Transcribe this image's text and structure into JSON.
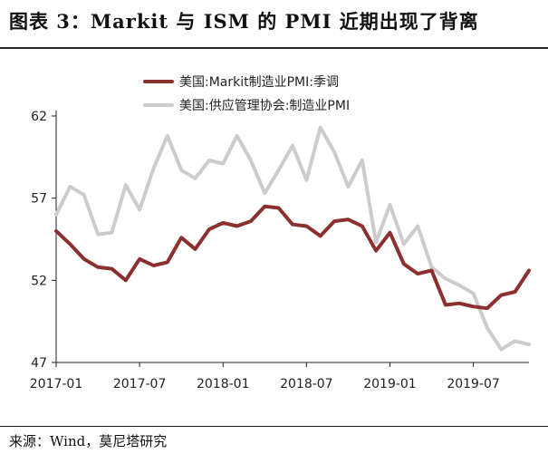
{
  "header": {
    "title": "图表 3：Markit 与 ISM 的 PMI 近期出现了背离"
  },
  "footer": {
    "source": "来源：Wind，莫尼塔研究"
  },
  "chart_data": {
    "type": "line",
    "title": "图表 3：Markit 与 ISM 的 PMI 近期出现了背离",
    "xlabel": "",
    "ylabel": "",
    "x_ticks": [
      "2017-01",
      "2017-07",
      "2018-01",
      "2018-07",
      "2019-01",
      "2019-07"
    ],
    "y_ticks": [
      47,
      52,
      57,
      62
    ],
    "ylim": [
      47,
      62
    ],
    "grid": false,
    "legend_position": "top",
    "x": [
      "2017-01",
      "2017-02",
      "2017-03",
      "2017-04",
      "2017-05",
      "2017-06",
      "2017-07",
      "2017-08",
      "2017-09",
      "2017-10",
      "2017-11",
      "2017-12",
      "2018-01",
      "2018-02",
      "2018-03",
      "2018-04",
      "2018-05",
      "2018-06",
      "2018-07",
      "2018-08",
      "2018-09",
      "2018-10",
      "2018-11",
      "2018-12",
      "2019-01",
      "2019-02",
      "2019-03",
      "2019-04",
      "2019-05",
      "2019-06",
      "2019-07",
      "2019-08",
      "2019-09",
      "2019-10",
      "2019-11"
    ],
    "series": [
      {
        "name": "美国:Markit制造业PMI:季调",
        "color": "#8b2f2f",
        "values": [
          55.0,
          54.2,
          53.3,
          52.8,
          52.7,
          52.0,
          53.3,
          52.9,
          53.1,
          54.6,
          53.9,
          55.1,
          55.5,
          55.3,
          55.6,
          56.5,
          56.4,
          55.4,
          55.3,
          54.7,
          55.6,
          55.7,
          55.3,
          53.8,
          54.9,
          53.0,
          52.4,
          52.6,
          50.5,
          50.6,
          50.4,
          50.3,
          51.1,
          51.3,
          52.6
        ]
      },
      {
        "name": "美国:供应管理协会:制造业PMI",
        "color": "#cccccc",
        "values": [
          56.0,
          57.7,
          57.2,
          54.8,
          54.9,
          57.8,
          56.3,
          58.8,
          60.8,
          58.7,
          58.2,
          59.3,
          59.1,
          60.8,
          59.3,
          57.3,
          58.7,
          60.2,
          58.1,
          61.3,
          59.8,
          57.7,
          59.3,
          54.3,
          56.6,
          54.2,
          55.3,
          52.8,
          52.1,
          51.7,
          51.2,
          49.1,
          47.8,
          48.3,
          48.1
        ]
      }
    ]
  }
}
